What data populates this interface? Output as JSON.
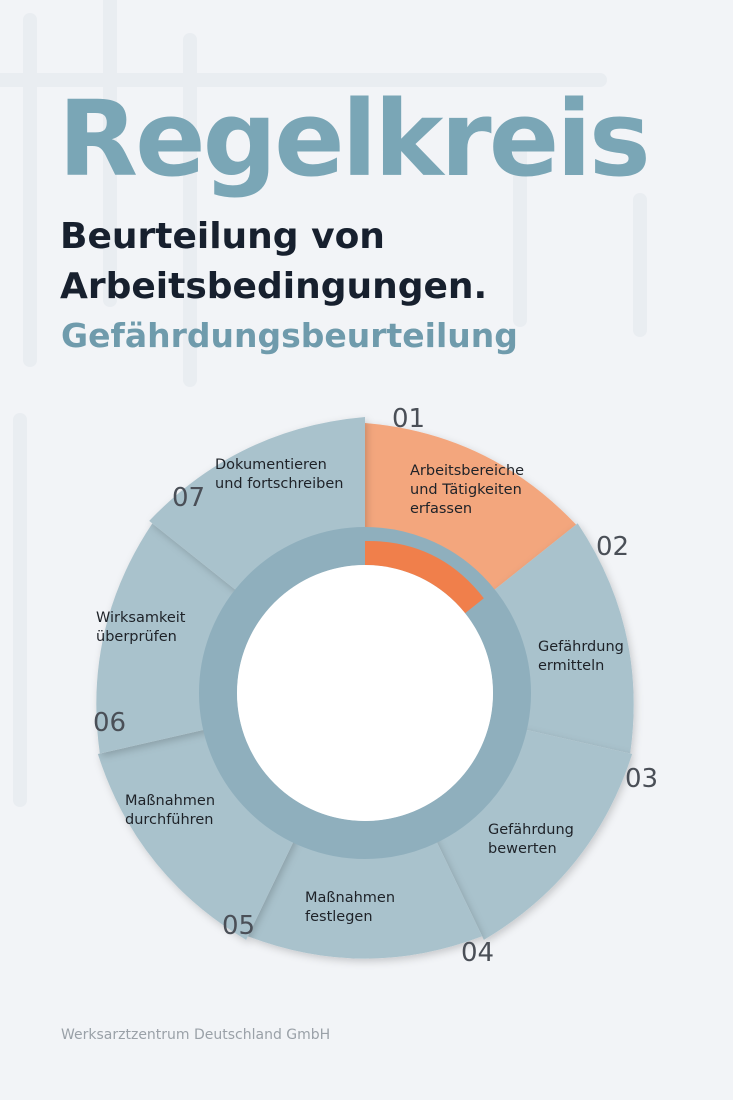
{
  "header": {
    "title": "Regelkreis",
    "subtitle_lines": [
      "Beurteilung von",
      "Arbeitsbedingungen."
    ],
    "tagline": "Gefährdungsbeurteilung"
  },
  "cycle": {
    "steps": [
      {
        "number": "01",
        "label_lines": [
          "Arbeitsbereiche",
          "und Tätigkeiten",
          "erfassen"
        ]
      },
      {
        "number": "02",
        "label_lines": [
          "Gefährdung",
          "ermitteln"
        ]
      },
      {
        "number": "03",
        "label_lines": [
          "Gefährdung",
          "bewerten"
        ]
      },
      {
        "number": "04",
        "label_lines": [
          "Maßnahmen",
          "festlegen"
        ]
      },
      {
        "number": "05",
        "label_lines": [
          "Maßnahmen",
          "durchführen"
        ]
      },
      {
        "number": "06",
        "label_lines": [
          "Wirksamkeit",
          "überprüfen"
        ]
      },
      {
        "number": "07",
        "label_lines": [
          "Dokumentieren",
          "und fortschreiben"
        ]
      }
    ]
  },
  "footer": "Werksarztzentrum Deutschland GmbH"
}
